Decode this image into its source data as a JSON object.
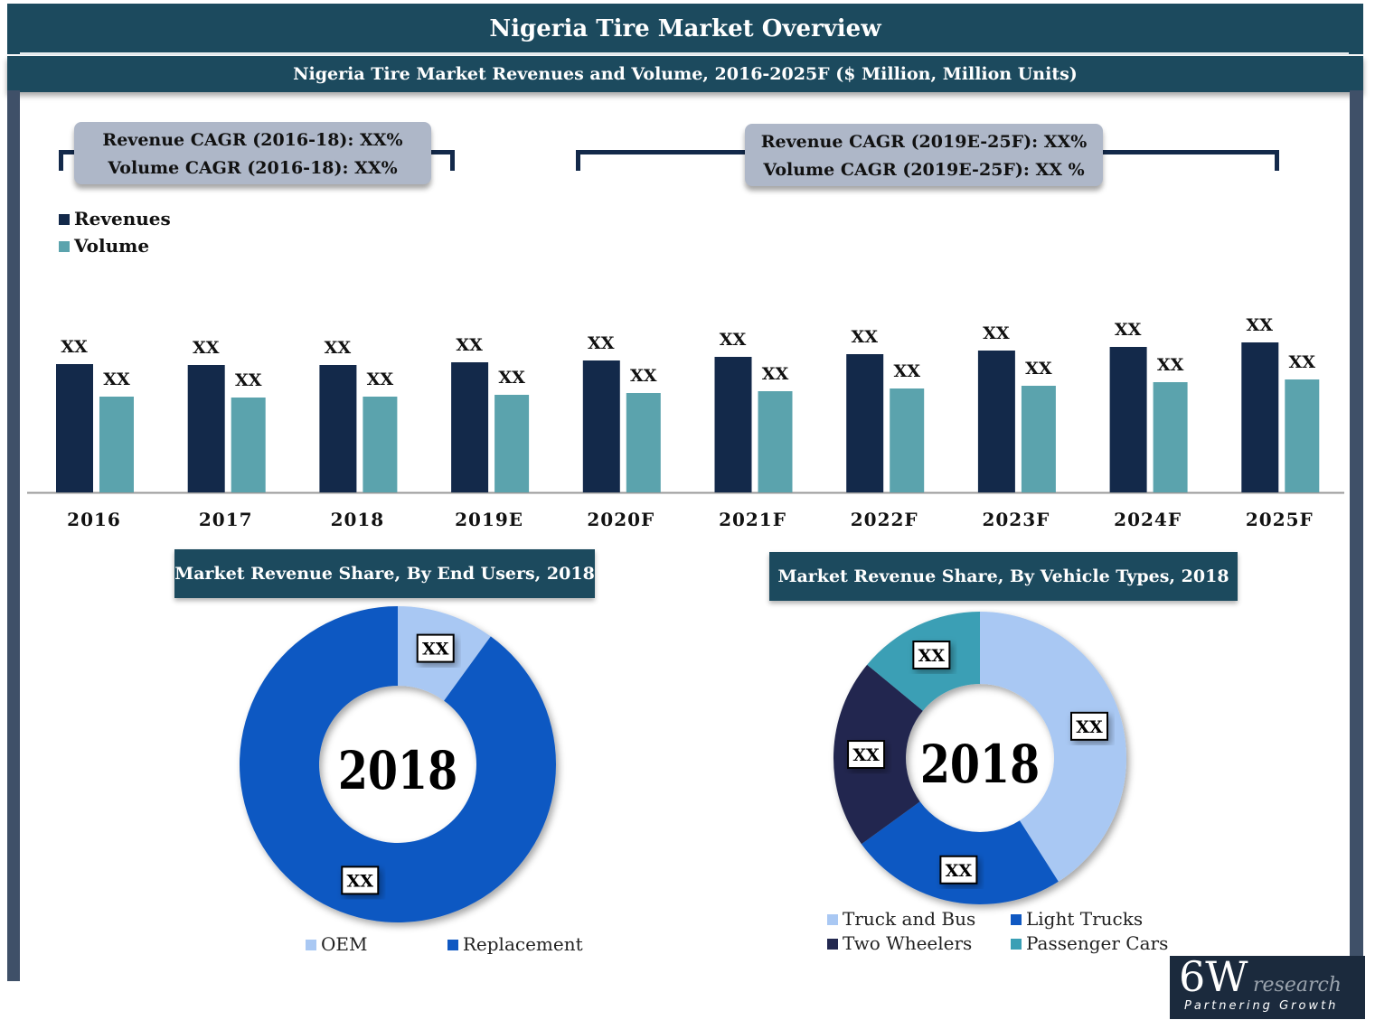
{
  "header": {
    "title": "Nigeria Tire Market Overview",
    "subtitle": "Nigeria Tire Market Revenues and Volume, 2016-2025F ($ Million, Million Units)"
  },
  "cagr_left": {
    "line1": "Revenue CAGR (2016-18): XX%",
    "line2": "Volume CAGR (2016-18): XX%"
  },
  "cagr_right": {
    "line1": "Revenue CAGR (2019E-25F): XX%",
    "line2": "Volume CAGR (2019E-25F): XX %"
  },
  "chart_data": [
    {
      "type": "bar",
      "categories": [
        "2016",
        "2017",
        "2018",
        "2019E",
        "2020F",
        "2021F",
        "2022F",
        "2023F",
        "2024F",
        "2025F"
      ],
      "series": [
        {
          "name": "Revenues",
          "color": "#13294a",
          "values": [
            142,
            141,
            141,
            144,
            146,
            150,
            153,
            157,
            161,
            166
          ],
          "labels": [
            "XX",
            "XX",
            "XX",
            "XX",
            "XX",
            "XX",
            "XX",
            "XX",
            "XX",
            "XX"
          ]
        },
        {
          "name": "Volume",
          "color": "#5ba3ad",
          "values": [
            106,
            105,
            106,
            108,
            110,
            112,
            115,
            118,
            122,
            125
          ],
          "labels": [
            "XX",
            "XX",
            "XX",
            "XX",
            "XX",
            "XX",
            "XX",
            "XX",
            "XX",
            "XX"
          ]
        }
      ],
      "legend": "top-left",
      "grid": false,
      "y_axis_shown": false
    },
    {
      "type": "pie",
      "title": "Market Revenue Share, By End Users, 2018",
      "center_label": "2018",
      "slices": [
        {
          "name": "OEM",
          "value": 10,
          "color": "#a9c8f3",
          "label": "XX"
        },
        {
          "name": "Replacement",
          "value": 90,
          "color": "#0f58c2",
          "label": "XX"
        }
      ],
      "legend": "bottom"
    },
    {
      "type": "pie",
      "title": "Market Revenue Share, By Vehicle Types, 2018",
      "center_label": "2018",
      "slices": [
        {
          "name": "Truck and Bus",
          "value": 41,
          "color": "#a9c8f3",
          "label": "XX"
        },
        {
          "name": "Light Trucks",
          "value": 24,
          "color": "#0f58c2",
          "label": "XX"
        },
        {
          "name": "Two Wheelers",
          "value": 21,
          "color": "#222850",
          "label": "XX"
        },
        {
          "name": "Passenger Cars",
          "value": 14,
          "color": "#3a9fb5",
          "label": "XX"
        }
      ],
      "legend": "bottom"
    }
  ],
  "logo": {
    "main": "6W",
    "sub": "research",
    "tagline": "Partnering Growth"
  }
}
